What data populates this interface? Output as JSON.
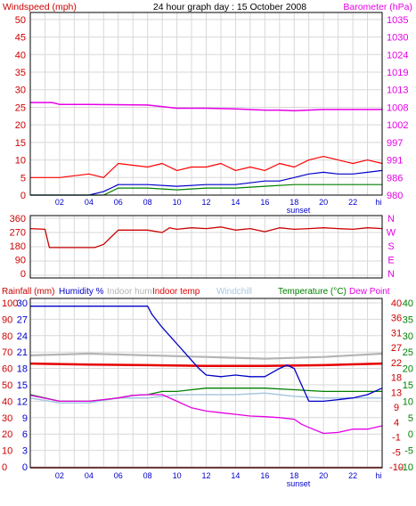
{
  "chart_data": [
    {
      "type": "line",
      "title": "24 hour graph day : 15 October 2008",
      "ylabel": "Windspeed (mph)",
      "y2label": "Barometer (hPa)",
      "x_tick_labels": [
        "02",
        "04",
        "06",
        "08",
        "10",
        "12",
        "14",
        "16",
        "18",
        "20",
        "22",
        "hi"
      ],
      "annotations": [
        "sunset"
      ],
      "ylim": [
        0,
        52
      ],
      "y_ticks": [
        0,
        5,
        10,
        15,
        20,
        25,
        30,
        35,
        40,
        45,
        50
      ],
      "y2_ticks": [
        980,
        986,
        991,
        997,
        1002,
        1008,
        1013,
        1019,
        1024,
        1030,
        1035
      ],
      "grid": true,
      "colors": {
        "gust": "#ff0000",
        "avg_wind": "#0000c8",
        "wind_low": "#008000",
        "barometer": "#e600e6",
        "axis_left": "#cc0000",
        "axis_right": "#e600e6"
      },
      "series": [
        {
          "key": "barometer",
          "axis": "y2",
          "x": [
            0,
            1.5,
            2,
            4,
            8,
            10,
            12,
            14,
            16,
            17,
            18,
            20,
            24
          ],
          "values": [
            1009.2,
            1009.2,
            1008.6,
            1008.6,
            1008.4,
            1007.4,
            1007.4,
            1007.2,
            1006.8,
            1006.8,
            1006.6,
            1007.0,
            1007.0
          ]
        },
        {
          "key": "gust",
          "axis": "y",
          "x": [
            0,
            2,
            4,
            5,
            6,
            8,
            9,
            10,
            11,
            12,
            13,
            14,
            15,
            16,
            17,
            18,
            19,
            20,
            21,
            22,
            23,
            24
          ],
          "values": [
            5,
            5,
            6,
            5,
            9,
            8,
            9,
            7,
            8,
            8,
            9,
            7,
            8,
            7,
            9,
            8,
            10,
            11,
            10,
            9,
            10,
            9
          ]
        },
        {
          "key": "avg_wind",
          "axis": "y",
          "x": [
            0,
            2,
            4,
            5,
            6,
            8,
            10,
            12,
            14,
            16,
            17,
            18,
            19,
            20,
            21,
            22,
            23,
            24
          ],
          "values": [
            0,
            0,
            0,
            1,
            3,
            3,
            2.5,
            3,
            3,
            4,
            4,
            5,
            6,
            6.5,
            6,
            6,
            6.5,
            7
          ]
        },
        {
          "key": "wind_low",
          "axis": "y",
          "x": [
            0,
            2,
            4,
            5,
            6,
            8,
            10,
            12,
            14,
            16,
            18,
            20,
            22,
            24
          ],
          "values": [
            0,
            0,
            0,
            0,
            2,
            2,
            1.5,
            2,
            2,
            2.5,
            3,
            3,
            3,
            3
          ]
        }
      ]
    },
    {
      "type": "line",
      "ylim": [
        0,
        360
      ],
      "y_ticks": [
        0,
        90,
        180,
        270,
        360
      ],
      "y2_ticks": [
        "N",
        "W",
        "S",
        "E",
        "N"
      ],
      "colors": {
        "direction": "#cc0000",
        "axis_right": "#e600e6"
      },
      "series": [
        {
          "key": "wind_direction",
          "x": [
            0,
            1,
            1.3,
            4.4,
            5,
            6,
            8,
            9,
            9.5,
            10,
            11,
            12,
            13,
            14,
            15,
            16,
            17,
            18,
            19,
            20,
            21,
            22,
            23,
            24
          ],
          "values": [
            295,
            290,
            175,
            175,
            195,
            285,
            285,
            270,
            300,
            290,
            300,
            295,
            305,
            285,
            295,
            275,
            300,
            290,
            295,
            300,
            295,
            290,
            300,
            295
          ]
        }
      ]
    },
    {
      "type": "line",
      "legend": [
        "Rainfall (mm)",
        "Humidity %",
        "Indoor hum",
        "Indoor temp",
        "Windchill",
        "Temperature (°C)",
        "Dew Point"
      ],
      "x_tick_labels": [
        "02",
        "04",
        "06",
        "08",
        "10",
        "12",
        "14",
        "16",
        "18",
        "20",
        "22",
        "hi"
      ],
      "annotations": [
        "sunset"
      ],
      "left_axis_a": {
        "label": "Rainfall (mm)",
        "ticks": [
          0,
          10,
          20,
          30,
          40,
          50,
          60,
          70,
          80,
          90,
          100
        ]
      },
      "left_axis_b": {
        "label": "Humidity %",
        "ticks": [
          0,
          3,
          6,
          9,
          12,
          15,
          18,
          21,
          24,
          27,
          30
        ]
      },
      "right_axis_a": {
        "ticks": [
          -10,
          -5,
          -1,
          4,
          9,
          13,
          18,
          22,
          27,
          31,
          36,
          40
        ]
      },
      "right_axis_b": {
        "ticks": [
          -10,
          -5,
          0,
          5,
          10,
          15,
          20,
          25,
          30,
          35,
          40
        ]
      },
      "grid": true,
      "colors": {
        "rainfall": "#cc0000",
        "humidity": "#0000c8",
        "indoor_hum": "#b4b4b4",
        "indoor_temp": "#e60000",
        "windchill": "#a8c8e0",
        "temperature": "#008000",
        "dew_point": "#e600e6",
        "axis_left_a": "#cc0000",
        "axis_left_b": "#0000c8",
        "axis_right_a": "#cc0000",
        "axis_right_b": "#008000"
      },
      "series": [
        {
          "key": "humidity",
          "axis": "humidity",
          "x": [
            0,
            2,
            3,
            4,
            5,
            6,
            7,
            8,
            8.3,
            9,
            9.5,
            10,
            10.5,
            11,
            11.5,
            12,
            13,
            14,
            15,
            16,
            17,
            17.5,
            18,
            18.5,
            19,
            20,
            21,
            22,
            23,
            24
          ],
          "values": [
            98,
            98,
            98,
            98,
            98,
            98,
            98,
            98,
            93,
            85,
            80,
            75,
            70,
            65,
            60,
            56,
            55,
            56,
            55,
            55,
            60,
            62,
            60,
            50,
            40,
            40,
            41,
            42,
            44,
            48
          ]
        },
        {
          "key": "indoor_hum",
          "axis": "humidity",
          "x": [
            0,
            4,
            8,
            12,
            16,
            20,
            24
          ],
          "values": [
            68,
            69,
            68,
            67,
            66,
            67,
            69
          ]
        },
        {
          "key": "indoor_temp",
          "axis": "temp",
          "x": [
            0,
            4,
            8,
            12,
            16,
            20,
            24
          ],
          "values": [
            21.5,
            21.2,
            21.0,
            20.8,
            20.8,
            21.0,
            21.5
          ]
        },
        {
          "key": "windchill",
          "axis": "temp",
          "x": [
            0,
            2,
            4,
            6,
            8,
            10,
            12,
            14,
            16,
            18,
            20,
            22,
            24
          ],
          "values": [
            11,
            9.5,
            9.5,
            11,
            11,
            12,
            12,
            12,
            12.5,
            11.5,
            11,
            11,
            11
          ]
        },
        {
          "key": "temperature",
          "axis": "temp",
          "x": [
            0,
            2,
            4,
            5,
            6,
            7,
            8,
            9,
            10,
            11,
            12,
            13,
            14,
            16,
            18,
            20,
            22,
            24
          ],
          "values": [
            12,
            10,
            10,
            10.5,
            11,
            11.8,
            12,
            13,
            13,
            13.5,
            14,
            14,
            14,
            14,
            13.5,
            13,
            13,
            13
          ]
        },
        {
          "key": "dew_point",
          "axis": "temp",
          "x": [
            0,
            2,
            4,
            5,
            6,
            7,
            8,
            9,
            10,
            11,
            12,
            13,
            14,
            15,
            16,
            17,
            18,
            18.5,
            19,
            20,
            21,
            22,
            23,
            24
          ],
          "values": [
            11.8,
            10,
            10,
            10.5,
            11,
            11.8,
            12,
            12,
            10,
            8,
            7,
            6.5,
            6,
            5.5,
            5.3,
            5,
            4.5,
            3,
            2,
            0.2,
            0.5,
            1.5,
            1.5,
            2.5
          ]
        },
        {
          "key": "rainfall",
          "axis": "rain",
          "x": [
            0,
            24
          ],
          "values": [
            0,
            0
          ]
        }
      ]
    }
  ]
}
